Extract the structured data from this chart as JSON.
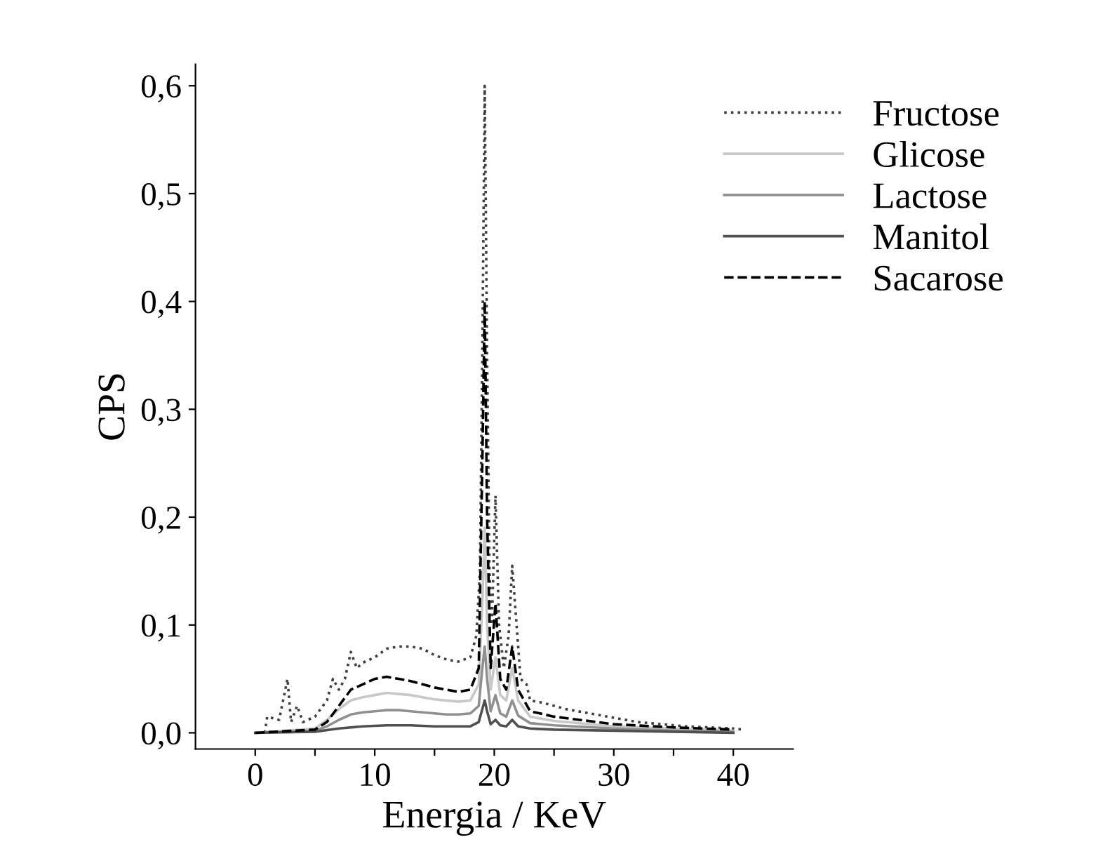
{
  "chart_data": {
    "type": "line",
    "xlabel": "Energia / KeV",
    "ylabel": "CPS",
    "xlim": [
      -5,
      45
    ],
    "ylim": [
      -0.015,
      0.62
    ],
    "xticks": [
      0,
      {
        "value": 5,
        "label": null
      },
      10,
      {
        "value": 15,
        "label": null
      },
      20,
      {
        "value": 25,
        "label": null
      },
      30,
      {
        "value": 35,
        "label": null
      },
      40
    ],
    "yticks": [
      {
        "value": 0,
        "label": "0,0"
      },
      {
        "value": 0.1,
        "label": "0,1"
      },
      {
        "value": 0.2,
        "label": "0,2"
      },
      {
        "value": 0.3,
        "label": "0,3"
      },
      {
        "value": 0.4,
        "label": "0,4"
      },
      {
        "value": 0.5,
        "label": "0,5"
      },
      {
        "value": 0.6,
        "label": "0,6"
      }
    ],
    "grid": false,
    "legend": "top right",
    "marker": "none",
    "series": [
      {
        "name": "Fructose",
        "color": "#404040",
        "line_style": "dotted",
        "x": [
          0.8,
          1.0,
          2.0,
          2.7,
          3.0,
          3.5,
          4.0,
          5.0,
          6.0,
          6.5,
          7.0,
          7.5,
          8.0,
          8.5,
          9.0,
          10.0,
          11.0,
          12.0,
          13.0,
          14.0,
          15.0,
          16.0,
          17.0,
          18.0,
          18.5,
          18.8,
          19.0,
          19.2,
          19.4,
          19.6,
          19.8,
          20.1,
          20.4,
          20.8,
          21.2,
          21.5,
          21.8,
          22.2,
          22.7,
          23.0,
          24.0,
          26.0,
          28.0,
          30.0,
          32.0,
          34.0,
          36.0,
          38.0,
          40.0,
          40.8
        ],
        "values": [
          0.0,
          0.015,
          0.012,
          0.05,
          0.01,
          0.025,
          0.01,
          0.015,
          0.03,
          0.05,
          0.04,
          0.05,
          0.075,
          0.06,
          0.065,
          0.07,
          0.078,
          0.08,
          0.08,
          0.078,
          0.072,
          0.068,
          0.066,
          0.07,
          0.09,
          0.15,
          0.35,
          0.6,
          0.35,
          0.15,
          0.1,
          0.22,
          0.1,
          0.06,
          0.09,
          0.155,
          0.11,
          0.05,
          0.045,
          0.03,
          0.028,
          0.022,
          0.018,
          0.014,
          0.01,
          0.008,
          0.006,
          0.005,
          0.004,
          0.003
        ]
      },
      {
        "name": "Glicose",
        "color": "#c8c8c8",
        "line_style": "solid",
        "x": [
          0,
          5,
          6,
          7,
          8,
          9,
          10,
          11,
          12,
          13,
          14,
          15,
          16,
          17,
          18,
          18.7,
          19.0,
          19.2,
          19.4,
          19.7,
          20.1,
          20.5,
          21.0,
          21.5,
          22.0,
          23.0,
          25.0,
          30.0,
          35.0,
          40.0
        ],
        "values": [
          0,
          0.004,
          0.012,
          0.022,
          0.03,
          0.033,
          0.035,
          0.037,
          0.036,
          0.035,
          0.033,
          0.031,
          0.03,
          0.029,
          0.03,
          0.045,
          0.12,
          0.19,
          0.1,
          0.04,
          0.07,
          0.035,
          0.03,
          0.06,
          0.03,
          0.015,
          0.011,
          0.006,
          0.004,
          0.002
        ]
      },
      {
        "name": "Lactose",
        "color": "#909090",
        "line_style": "solid",
        "x": [
          0,
          5,
          6,
          7,
          8,
          9,
          10,
          11,
          12,
          13,
          14,
          15,
          16,
          17,
          18,
          18.7,
          19.0,
          19.2,
          19.4,
          19.7,
          20.1,
          20.5,
          21.0,
          21.5,
          22.0,
          23.0,
          25.0,
          30.0,
          35.0,
          40.0
        ],
        "values": [
          0,
          0.002,
          0.006,
          0.012,
          0.017,
          0.019,
          0.02,
          0.021,
          0.021,
          0.02,
          0.019,
          0.018,
          0.017,
          0.017,
          0.018,
          0.025,
          0.06,
          0.08,
          0.05,
          0.02,
          0.035,
          0.018,
          0.015,
          0.03,
          0.016,
          0.009,
          0.007,
          0.004,
          0.002,
          0.001
        ]
      },
      {
        "name": "Manitol",
        "color": "#505050",
        "line_style": "solid",
        "x": [
          0,
          5,
          7,
          9,
          11,
          13,
          15,
          17,
          18,
          18.7,
          19.0,
          19.2,
          19.4,
          19.7,
          20.1,
          20.5,
          21.0,
          21.5,
          22.0,
          23.0,
          25.0,
          30.0,
          35.0,
          40.0
        ],
        "values": [
          0,
          0.001,
          0.004,
          0.006,
          0.007,
          0.007,
          0.006,
          0.006,
          0.006,
          0.01,
          0.022,
          0.03,
          0.02,
          0.008,
          0.012,
          0.007,
          0.006,
          0.012,
          0.006,
          0.004,
          0.003,
          0.002,
          0.001,
          0.0
        ]
      },
      {
        "name": "Sacarose",
        "color": "#000000",
        "line_style": "dashed",
        "x": [
          0,
          5,
          6,
          7,
          8,
          9,
          10,
          11,
          12,
          13,
          14,
          15,
          16,
          17,
          18,
          18.7,
          19.0,
          19.2,
          19.4,
          19.7,
          20.1,
          20.5,
          21.0,
          21.5,
          22.0,
          23.0,
          25.0,
          30.0,
          35.0,
          40.0
        ],
        "values": [
          0,
          0.003,
          0.01,
          0.025,
          0.04,
          0.045,
          0.05,
          0.052,
          0.05,
          0.048,
          0.045,
          0.042,
          0.04,
          0.038,
          0.04,
          0.06,
          0.25,
          0.4,
          0.2,
          0.06,
          0.12,
          0.05,
          0.04,
          0.08,
          0.04,
          0.02,
          0.015,
          0.008,
          0.005,
          0.003
        ]
      }
    ]
  }
}
